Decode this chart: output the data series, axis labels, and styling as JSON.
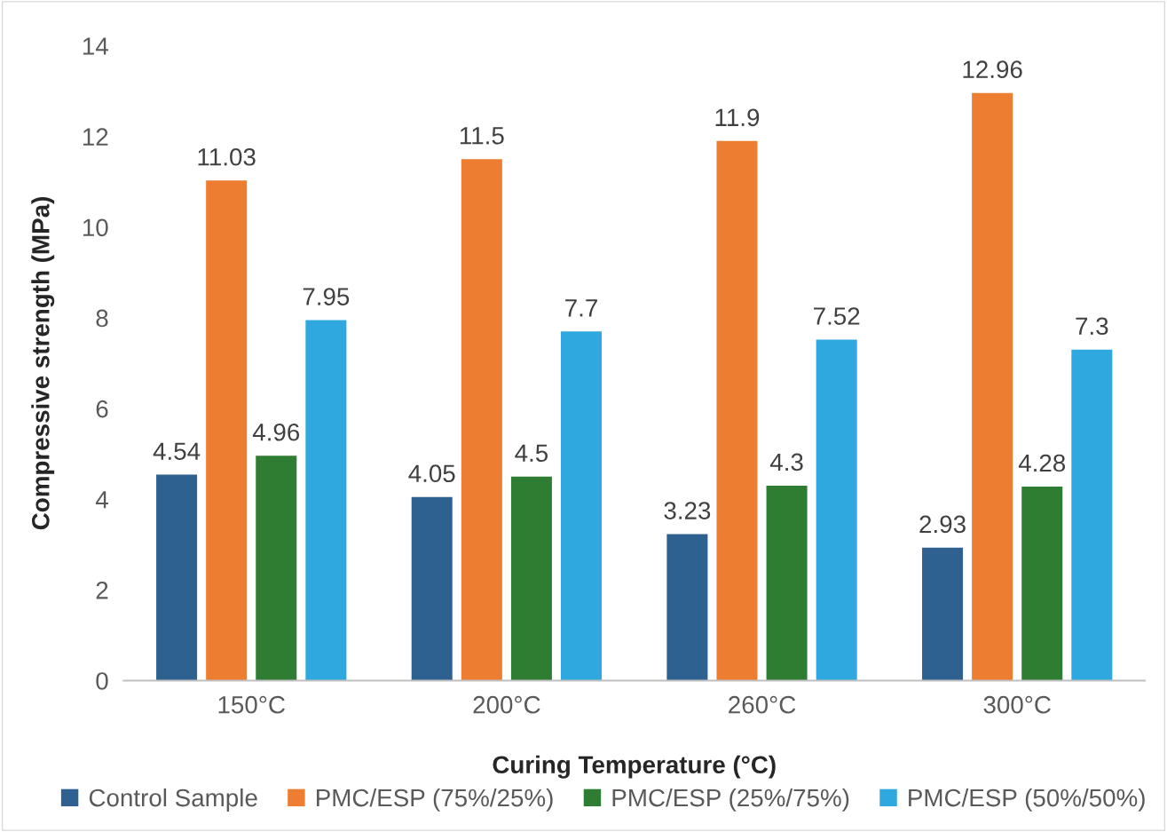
{
  "chart_data": {
    "type": "bar",
    "xlabel": "Curing Temperature (°C)",
    "ylabel": "Compressive strength (MPa)",
    "categories": [
      "150°C",
      "200°C",
      "260°C",
      "300°C"
    ],
    "series": [
      {
        "name": "Control Sample",
        "color": "#2e6190",
        "values": [
          4.54,
          4.05,
          3.23,
          2.93
        ],
        "value_labels": [
          "4.54",
          "4.05",
          "3.23",
          "2.93"
        ]
      },
      {
        "name": "PMC/ESP (75%/25%)",
        "color": "#ed7d31",
        "values": [
          11.03,
          11.5,
          11.9,
          12.96
        ],
        "value_labels": [
          "11.03",
          "11.5",
          "11.9",
          "12.96"
        ]
      },
      {
        "name": "PMC/ESP (25%/75%)",
        "color": "#2f7d32",
        "values": [
          4.96,
          4.5,
          4.3,
          4.28
        ],
        "value_labels": [
          "4.96",
          "4.5",
          "4.3",
          "4.28"
        ]
      },
      {
        "name": "PMC/ESP (50%/50%)",
        "color": "#2ea8df",
        "values": [
          7.95,
          7.7,
          7.52,
          7.3
        ],
        "value_labels": [
          "7.95",
          "7.7",
          "7.52",
          "7.3"
        ]
      }
    ],
    "ylim": [
      0,
      14
    ],
    "yticks": [
      0,
      2,
      4,
      6,
      8,
      10,
      12,
      14
    ],
    "grid": false,
    "legend": "bottom"
  }
}
